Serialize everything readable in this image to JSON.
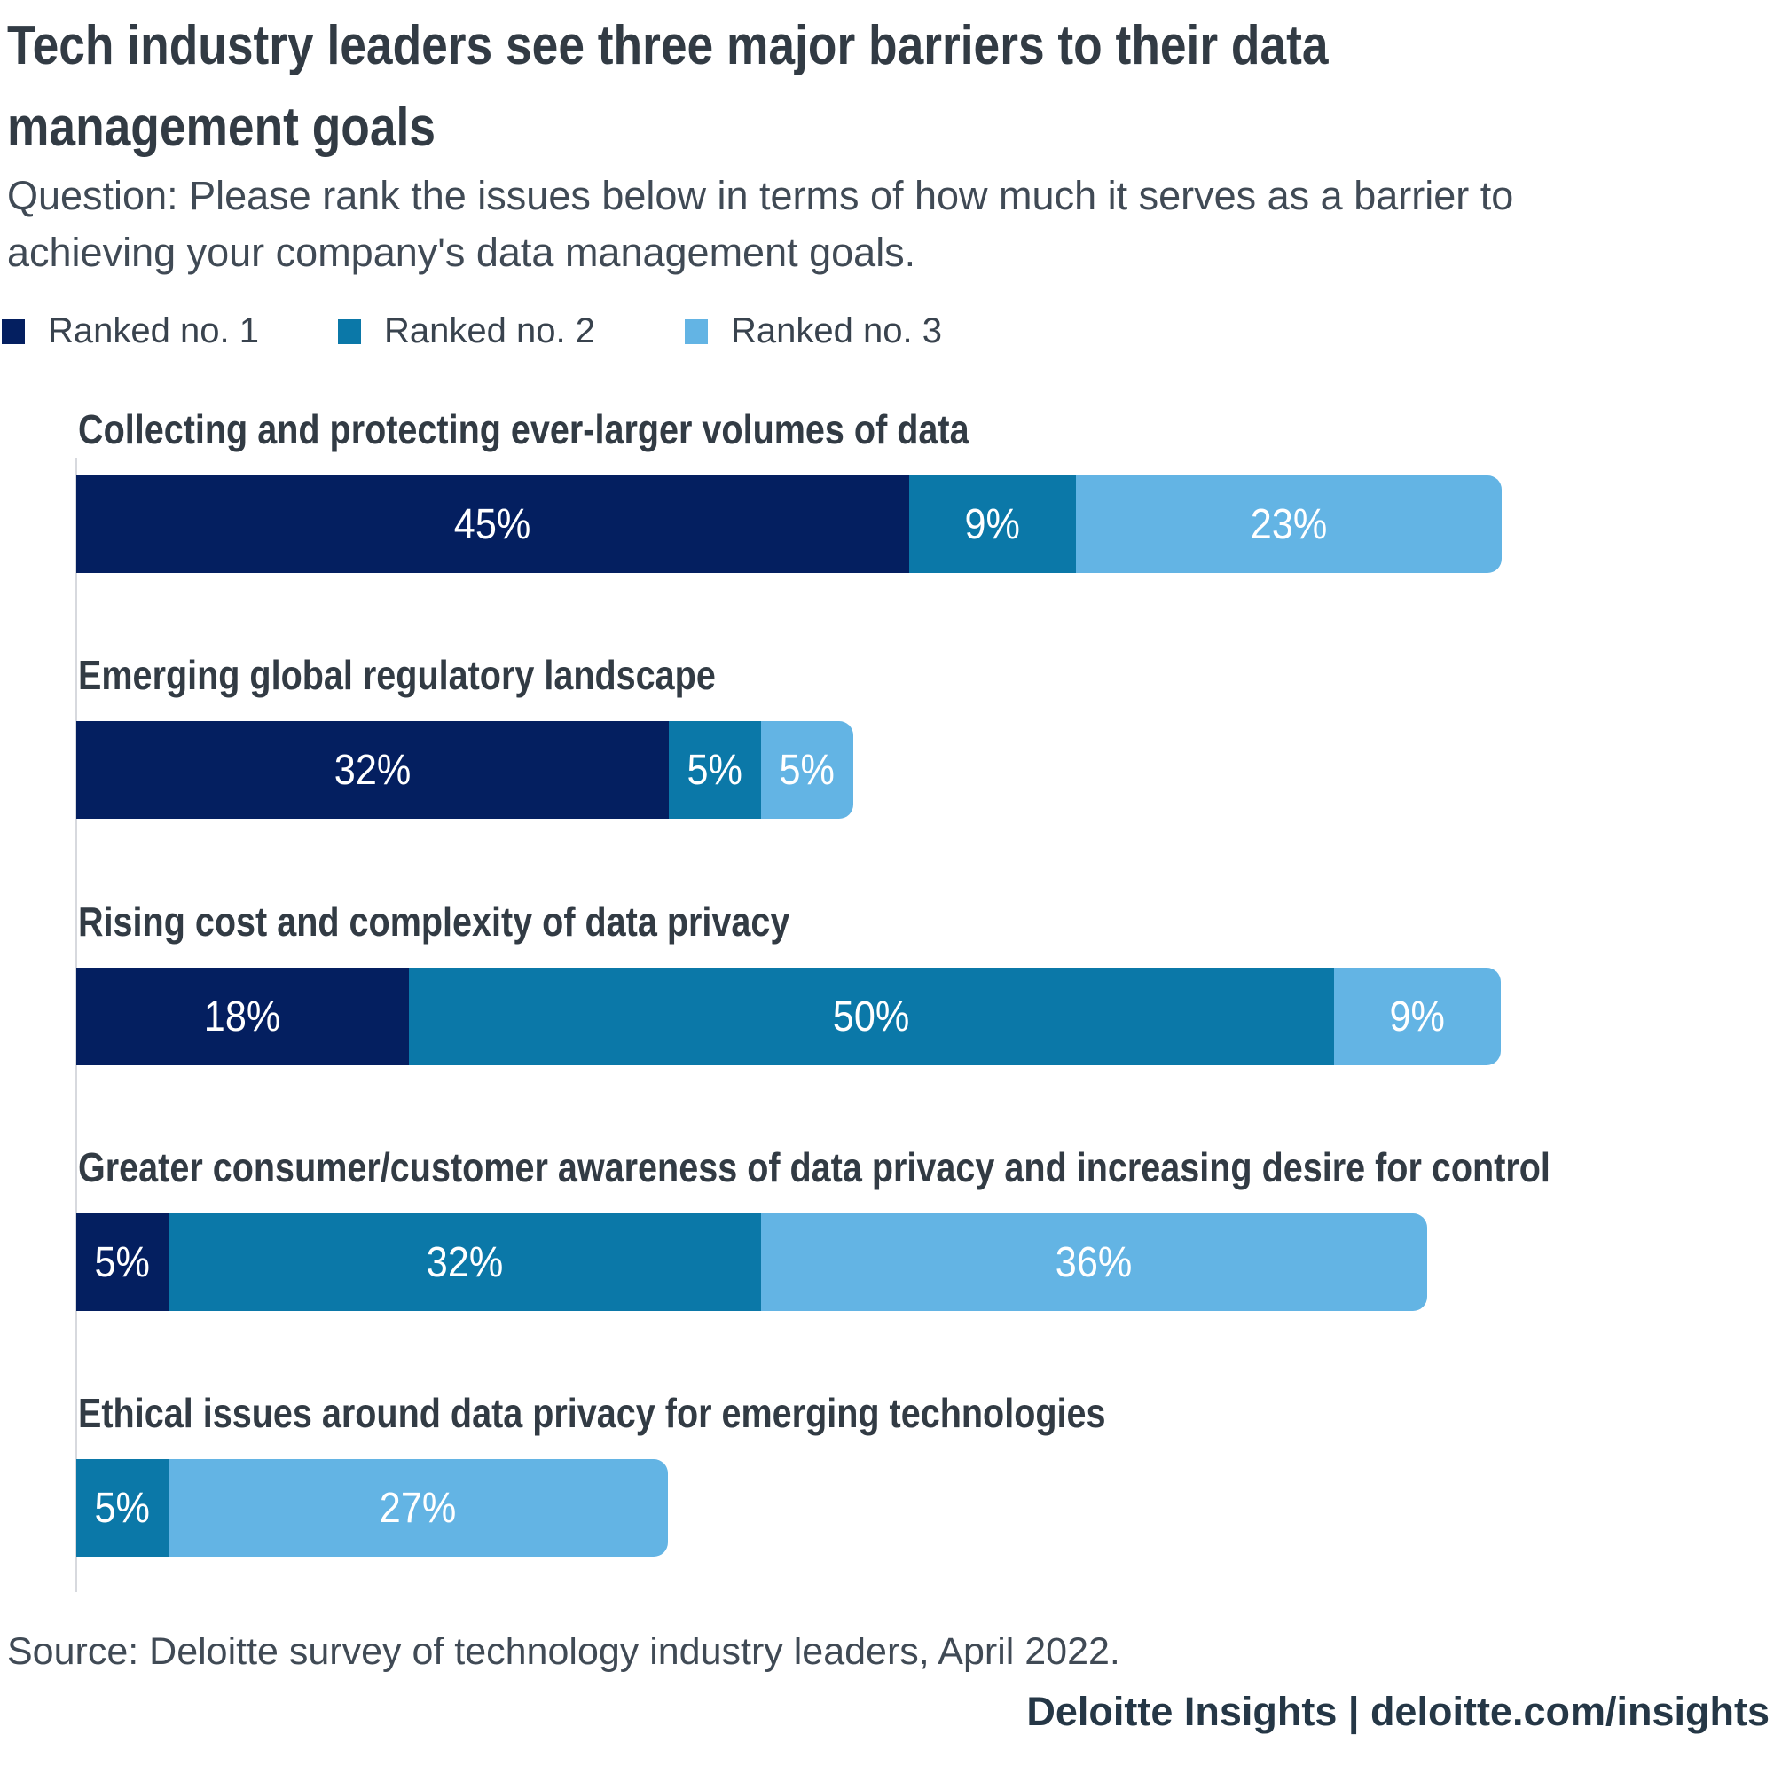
{
  "title_lines": [
    "Tech industry leaders see three major barriers to their data",
    "management goals"
  ],
  "subtitle_lines": [
    "Question: Please rank the issues below in terms of how much it serves as a barrier to",
    "achieving your company's data management goals."
  ],
  "legend": [
    {
      "label": "Ranked no. 1",
      "color": "#041f60"
    },
    {
      "label": "Ranked no. 2",
      "color": "#0b78a8"
    },
    {
      "label": "Ranked no. 3",
      "color": "#63b4e4"
    }
  ],
  "chart_data": {
    "type": "bar",
    "orientation": "horizontal",
    "stacked": true,
    "unit": "%",
    "value_label_format": "{value}%",
    "value_label_position": "inside-center",
    "grid": false,
    "legend_position": "top-left",
    "categories": [
      "Collecting and protecting ever-larger volumes of data",
      "Emerging global regulatory landscape",
      "Rising cost and complexity of data privacy",
      "Greater consumer/customer awareness of data privacy and increasing desire for control",
      "Ethical issues around data privacy for emerging technologies"
    ],
    "series": [
      {
        "name": "Ranked no. 1",
        "color": "#041f60",
        "values": [
          45,
          32,
          18,
          5,
          0
        ]
      },
      {
        "name": "Ranked no. 2",
        "color": "#0b78a8",
        "values": [
          9,
          5,
          50,
          32,
          5
        ]
      },
      {
        "name": "Ranked no. 3",
        "color": "#63b4e4",
        "values": [
          23,
          5,
          9,
          36,
          27
        ]
      }
    ],
    "xlim": [
      0,
      80
    ]
  },
  "source": "Source: Deloitte survey of technology industry leaders, April 2022.",
  "footer": "Deloitte Insights | deloitte.com/insights",
  "colors": {
    "title_text": "#323b44",
    "body_text": "#404a55",
    "axis_line": "#d7d9de",
    "value_label_text": "#ffffff",
    "background": "#ffffff"
  }
}
